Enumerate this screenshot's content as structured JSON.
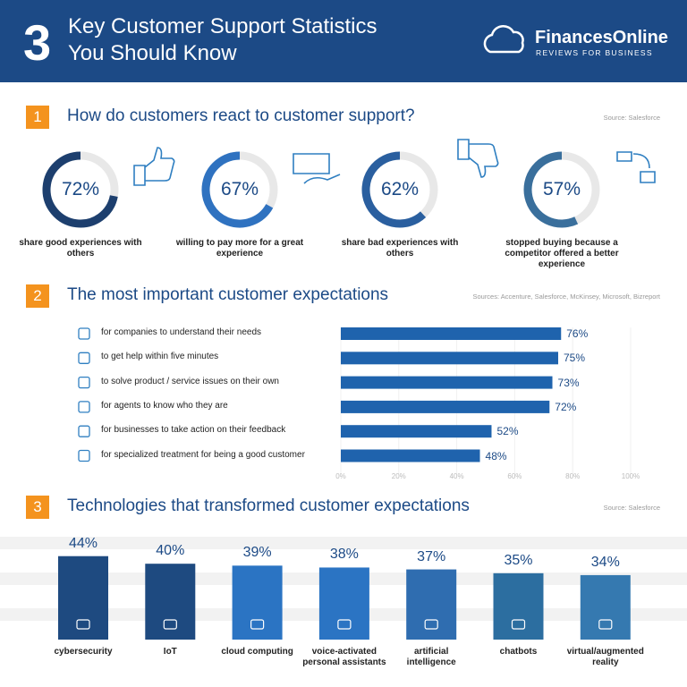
{
  "header": {
    "number": "3",
    "title_lines": [
      "Key Customer Support Statistics",
      "You Should Know"
    ],
    "brand": "FinancesOnline",
    "brand_tagline": "REVIEWS FOR BUSINESS"
  },
  "chart_data": [
    {
      "type": "donut",
      "number": "1",
      "title": "How do customers react to customer support?",
      "source": "Source: Salesforce",
      "categories": [
        "share good experiences with others",
        "willing to pay more for a great experience",
        "share bad experiences with others",
        "stopped buying because a competitor offered a better experience"
      ],
      "values": [
        72,
        67,
        62,
        57
      ],
      "value_labels": [
        "72%",
        "67%",
        "62%",
        "57%"
      ],
      "colors": [
        "#1d3f6e",
        "#2f72c0",
        "#2a5f9f",
        "#3a6f9c"
      ]
    },
    {
      "type": "hbar",
      "number": "2",
      "title": "The most important customer expectations",
      "source": "Sources: Accenture, Salesforce, McKinsey, Microsoft, Bizreport",
      "categories": [
        "for companies to understand their needs",
        "to get help within five minutes",
        "to solve product / service issues on their own",
        "for agents to know who they are",
        "for businesses to take action on their feedback",
        "for specialized treatment for being a good customer"
      ],
      "values": [
        76,
        75,
        73,
        72,
        52,
        48
      ],
      "value_labels": [
        "76%",
        "75%",
        "73%",
        "72%",
        "52%",
        "48%"
      ],
      "color": "#1f63ad",
      "xlim": [
        0,
        100
      ],
      "xticks": [
        {
          "value": 0,
          "label": "0%"
        },
        {
          "value": 20,
          "label": "20%"
        },
        {
          "value": 40,
          "label": "40%"
        },
        {
          "value": 60,
          "label": "60%"
        },
        {
          "value": 80,
          "label": "80%"
        },
        {
          "value": 100,
          "label": "100%"
        }
      ]
    },
    {
      "type": "bar",
      "number": "3",
      "title": "Technologies that transformed customer expectations",
      "source": "Source: Salesforce",
      "categories": [
        "cybersecurity",
        "IoT",
        "cloud computing",
        "voice-activated personal assistants",
        "artificial intelligence",
        "chatbots",
        "virtual/augmented reality"
      ],
      "values": [
        44,
        40,
        39,
        38,
        37,
        35,
        34
      ],
      "value_labels": [
        "44%",
        "40%",
        "39%",
        "38%",
        "37%",
        "35%",
        "34%"
      ],
      "colors": [
        "#1e4a80",
        "#1e4a80",
        "#2b74c3",
        "#2b74c3",
        "#2f6db0",
        "#2c6ea0",
        "#3579b0"
      ]
    }
  ]
}
